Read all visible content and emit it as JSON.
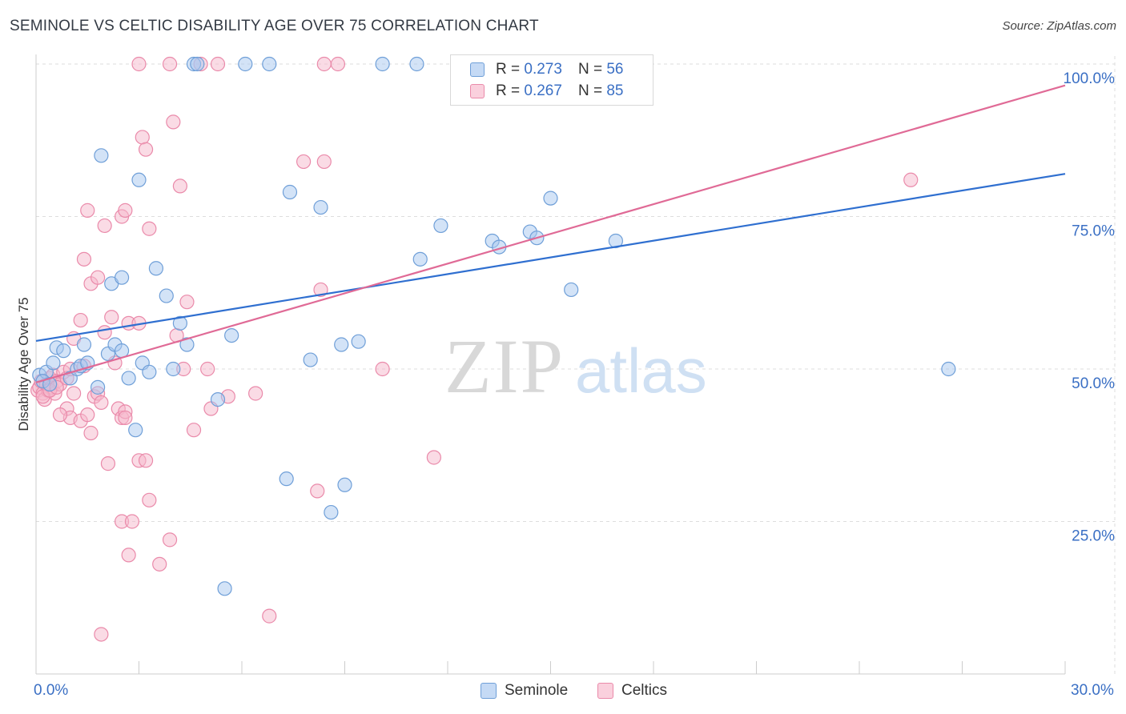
{
  "title": "SEMINOLE VS CELTIC DISABILITY AGE OVER 75 CORRELATION CHART",
  "source": "Source: ZipAtlas.com",
  "colors": {
    "seminole_fill": "#a8c8f0",
    "seminole_stroke": "#6f9fd8",
    "seminole_line": "#2f6fd0",
    "celtics_fill": "#f6b8cc",
    "celtics_stroke": "#ea8aaa",
    "celtics_line": "#e06a96",
    "axis_label": "#3a6fc4",
    "grid": "#dddddd"
  },
  "legend": {
    "rows": [
      {
        "r_label": "R =",
        "r_value": "0.273",
        "n_label": "N =",
        "n_value": "56"
      },
      {
        "r_label": "R =",
        "r_value": "0.267",
        "n_label": "N =",
        "n_value": "85"
      }
    ]
  },
  "bottom_legend": {
    "seminole": "Seminole",
    "celtics": "Celtics"
  },
  "chart_data": {
    "type": "scatter",
    "title": "SEMINOLE VS CELTIC DISABILITY AGE OVER 75 CORRELATION CHART",
    "xlabel": "",
    "ylabel": "Disability Age Over 75",
    "xlim": [
      0,
      30
    ],
    "ylim": [
      0,
      100
    ],
    "x_tick_labels": [
      "0.0%",
      "30.0%"
    ],
    "y_ticks": [
      25,
      50,
      75,
      100
    ],
    "y_tick_labels": [
      "25.0%",
      "50.0%",
      "75.0%",
      "100.0%"
    ],
    "grid": true,
    "legend_placement": "top-center",
    "watermark": "ZIPatlas",
    "series": [
      {
        "name": "Seminole",
        "trend": {
          "x": [
            0,
            30
          ],
          "y": [
            54.6,
            82.0
          ]
        },
        "points": [
          [
            0.1,
            49.0
          ],
          [
            0.3,
            49.5
          ],
          [
            0.5,
            51.0
          ],
          [
            0.6,
            53.5
          ],
          [
            0.8,
            53.0
          ],
          [
            1.0,
            48.5
          ],
          [
            1.2,
            50.0
          ],
          [
            1.3,
            50.5
          ],
          [
            1.5,
            51.0
          ],
          [
            1.4,
            54.0
          ],
          [
            1.8,
            47.0
          ],
          [
            2.1,
            52.5
          ],
          [
            2.3,
            54.0
          ],
          [
            2.5,
            53.0
          ],
          [
            2.2,
            64.0
          ],
          [
            2.5,
            65.0
          ],
          [
            2.7,
            48.5
          ],
          [
            2.9,
            40.0
          ],
          [
            3.1,
            51.0
          ],
          [
            3.3,
            49.5
          ],
          [
            3.5,
            66.5
          ],
          [
            3.8,
            62.0
          ],
          [
            4.0,
            50.0
          ],
          [
            4.2,
            57.5
          ],
          [
            4.4,
            54.0
          ],
          [
            5.3,
            45.0
          ],
          [
            5.7,
            55.5
          ],
          [
            1.9,
            85.0
          ],
          [
            3.0,
            81.0
          ],
          [
            7.4,
            79.0
          ],
          [
            8.3,
            76.5
          ],
          [
            7.3,
            32.0
          ],
          [
            8.0,
            51.5
          ],
          [
            8.6,
            26.5
          ],
          [
            9.0,
            31.0
          ],
          [
            8.9,
            54.0
          ],
          [
            9.4,
            54.5
          ],
          [
            11.2,
            68.0
          ],
          [
            11.8,
            73.5
          ],
          [
            13.3,
            71.0
          ],
          [
            13.5,
            70.0
          ],
          [
            14.4,
            72.5
          ],
          [
            14.6,
            71.5
          ],
          [
            15.0,
            78.0
          ],
          [
            15.6,
            63.0
          ],
          [
            16.9,
            71.0
          ],
          [
            26.6,
            50.0
          ],
          [
            5.5,
            14.0
          ],
          [
            4.6,
            100
          ],
          [
            4.7,
            100
          ],
          [
            6.1,
            100
          ],
          [
            6.8,
            100
          ],
          [
            10.1,
            100
          ],
          [
            11.1,
            100
          ],
          [
            0.2,
            48.0
          ],
          [
            0.4,
            47.5
          ]
        ]
      },
      {
        "name": "Celtics",
        "trend": {
          "x": [
            0,
            30
          ],
          "y": [
            47.8,
            96.5
          ]
        },
        "points": [
          [
            0.05,
            46.5
          ],
          [
            0.1,
            47.0
          ],
          [
            0.15,
            48.0
          ],
          [
            0.2,
            46.0
          ],
          [
            0.25,
            45.0
          ],
          [
            0.3,
            47.5
          ],
          [
            0.35,
            46.5
          ],
          [
            0.4,
            48.5
          ],
          [
            0.45,
            47.0
          ],
          [
            0.5,
            49.0
          ],
          [
            0.55,
            46.0
          ],
          [
            0.6,
            48.0
          ],
          [
            0.7,
            47.5
          ],
          [
            0.8,
            49.5
          ],
          [
            0.9,
            48.5
          ],
          [
            1.0,
            50.0
          ],
          [
            1.1,
            46.0
          ],
          [
            0.9,
            43.5
          ],
          [
            1.0,
            42.0
          ],
          [
            0.7,
            42.5
          ],
          [
            1.1,
            55.0
          ],
          [
            1.3,
            41.5
          ],
          [
            1.4,
            50.5
          ],
          [
            1.5,
            42.5
          ],
          [
            1.6,
            39.5
          ],
          [
            1.7,
            45.5
          ],
          [
            1.8,
            46.0
          ],
          [
            1.9,
            44.5
          ],
          [
            2.0,
            56.0
          ],
          [
            1.3,
            58.0
          ],
          [
            1.4,
            68.0
          ],
          [
            1.6,
            64.0
          ],
          [
            1.8,
            65.0
          ],
          [
            2.2,
            58.5
          ],
          [
            2.3,
            51.0
          ],
          [
            2.4,
            43.5
          ],
          [
            2.5,
            42.0
          ],
          [
            2.6,
            43.0
          ],
          [
            2.7,
            57.5
          ],
          [
            3.0,
            57.5
          ],
          [
            1.5,
            76.0
          ],
          [
            2.0,
            73.5
          ],
          [
            2.5,
            75.0
          ],
          [
            2.6,
            76.0
          ],
          [
            3.3,
            73.0
          ],
          [
            3.1,
            88.0
          ],
          [
            3.2,
            86.0
          ],
          [
            4.0,
            90.5
          ],
          [
            4.2,
            80.0
          ],
          [
            4.4,
            61.0
          ],
          [
            4.3,
            50.0
          ],
          [
            4.1,
            55.5
          ],
          [
            4.6,
            40.0
          ],
          [
            5.0,
            50.0
          ],
          [
            5.1,
            43.5
          ],
          [
            5.6,
            45.5
          ],
          [
            6.4,
            46.0
          ],
          [
            3.0,
            35.0
          ],
          [
            3.2,
            35.0
          ],
          [
            3.3,
            28.5
          ],
          [
            2.1,
            34.5
          ],
          [
            2.5,
            25.0
          ],
          [
            2.8,
            25.0
          ],
          [
            2.7,
            19.5
          ],
          [
            3.6,
            18.0
          ],
          [
            3.9,
            22.0
          ],
          [
            1.9,
            6.5
          ],
          [
            6.8,
            9.5
          ],
          [
            7.8,
            84.0
          ],
          [
            8.3,
            63.0
          ],
          [
            8.4,
            84.0
          ],
          [
            8.2,
            30.0
          ],
          [
            10.1,
            50.0
          ],
          [
            11.6,
            35.5
          ],
          [
            25.5,
            81.0
          ],
          [
            3.0,
            100
          ],
          [
            3.9,
            100
          ],
          [
            4.8,
            100
          ],
          [
            5.3,
            100
          ],
          [
            8.4,
            100
          ],
          [
            8.8,
            100
          ],
          [
            0.2,
            45.5
          ],
          [
            0.4,
            46.5
          ],
          [
            0.6,
            47.0
          ],
          [
            2.6,
            42.0
          ]
        ]
      }
    ]
  }
}
